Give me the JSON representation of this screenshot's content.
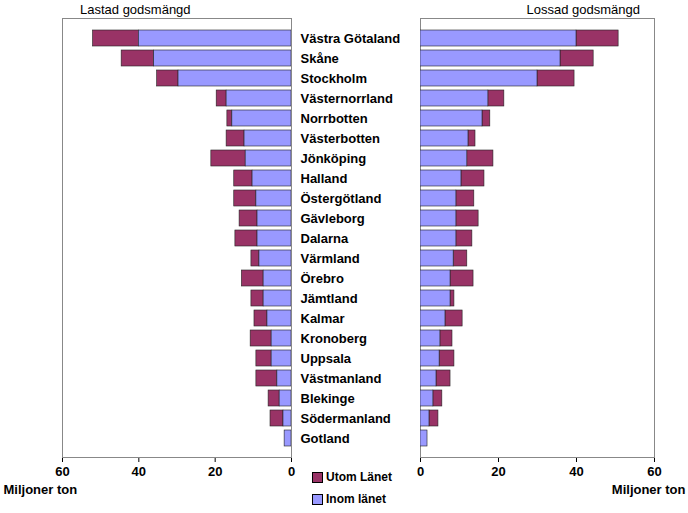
{
  "chart_data": [
    {
      "type": "bar",
      "title": "Lastad godsmängd",
      "orientation": "horizontal",
      "stacked": true,
      "legend": "bottom",
      "categories": [
        "Västra Götaland",
        "Skåne",
        "Stockholm",
        "Västernorrland",
        "Norrbotten",
        "Västerbotten",
        "Jönköping",
        "Halland",
        "Östergötland",
        "Gävleborg",
        "Dalarna",
        "Värmland",
        "Örebro",
        "Jämtland",
        "Kalmar",
        "Kronoberg",
        "Uppsala",
        "Västmanland",
        "Blekinge",
        "Södermanland",
        "Gotland"
      ],
      "series": [
        {
          "name": "Utom Länet",
          "color": "#993366",
          "values": [
            12,
            8.5,
            5.6,
            2.6,
            1.3,
            4.7,
            9,
            4.8,
            5.8,
            4.7,
            5.8,
            2.1,
            5.7,
            3.2,
            3.4,
            5.5,
            4,
            5.5,
            2.9,
            3.4,
            0
          ]
        },
        {
          "name": "Inom länet",
          "color": "#9999ff",
          "values": [
            40,
            36,
            29.6,
            17,
            15.5,
            12.3,
            12,
            10.2,
            9.2,
            8.9,
            8.9,
            8.4,
            7.3,
            7.3,
            6.3,
            5.2,
            5.2,
            3.7,
            3.1,
            2.1,
            1.8
          ]
        }
      ],
      "xlim": [
        60,
        0
      ],
      "xticks": [
        60,
        40,
        20,
        0
      ],
      "xlabel": "Miljoner ton"
    },
    {
      "type": "bar",
      "title": "Lossad godsmängd",
      "orientation": "horizontal",
      "stacked": true,
      "tick_labels": "x",
      "categories": [
        "Västra Götaland",
        "Skåne",
        "Stockholm",
        "Västernorrland",
        "Norrbotten",
        "Västerbotten",
        "Jönköping",
        "Halland",
        "Östergötland",
        "Gävleborg",
        "Dalarna",
        "Värmland",
        "Örebro",
        "Jämtland",
        "Kalmar",
        "Kronoberg",
        "Uppsala",
        "Västmanland",
        "Blekinge",
        "Södermanland",
        "Gotland"
      ],
      "series": [
        {
          "name": "Utom Länet",
          "color": "#993366",
          "values": [
            10.8,
            8.5,
            9.5,
            4.1,
            2,
            1.8,
            6.7,
            5.9,
            4.6,
            5.7,
            4.1,
            3.5,
            5.9,
            1,
            4.4,
            3.1,
            3.8,
            3.6,
            2.3,
            2.3,
            0
          ]
        },
        {
          "name": "Inom länet",
          "color": "#9999ff",
          "values": [
            40,
            35.9,
            30,
            17.4,
            15.9,
            12.3,
            12,
            10.5,
            9.2,
            9.2,
            9.2,
            8.5,
            7.7,
            7.7,
            6.4,
            5.1,
            4.9,
            4.1,
            3.3,
            2.3,
            1.8
          ]
        }
      ],
      "xlim": [
        0,
        60
      ],
      "xticks": [
        0,
        20,
        40,
        60
      ],
      "xlabel": "Miljoner ton"
    }
  ]
}
